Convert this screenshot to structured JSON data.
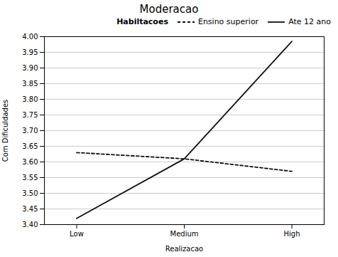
{
  "chart_data": {
    "type": "line",
    "title": "Moderacao",
    "xlabel": "Realizacao",
    "ylabel": "Com Dificuldades",
    "x": [
      0,
      1,
      2
    ],
    "xlim": [
      -0.3,
      2.3
    ],
    "xticks": [
      {
        "value": 0,
        "label": "Low"
      },
      {
        "value": 1,
        "label": "Medium"
      },
      {
        "value": 2,
        "label": "High"
      }
    ],
    "ylim": [
      3.4,
      4.0
    ],
    "yticks": [
      {
        "value": 3.4,
        "label": "3.40"
      },
      {
        "value": 3.45,
        "label": "3.45"
      },
      {
        "value": 3.5,
        "label": "3.50"
      },
      {
        "value": 3.55,
        "label": "3.55"
      },
      {
        "value": 3.6,
        "label": "3.60"
      },
      {
        "value": 3.65,
        "label": "3.65"
      },
      {
        "value": 3.7,
        "label": "3.70"
      },
      {
        "value": 3.75,
        "label": "3.75"
      },
      {
        "value": 3.8,
        "label": "3.80"
      },
      {
        "value": 3.85,
        "label": "3.85"
      },
      {
        "value": 3.9,
        "label": "3.90"
      },
      {
        "value": 3.95,
        "label": "3.95"
      },
      {
        "value": 4.0,
        "label": "4.00"
      }
    ],
    "series": [
      {
        "name": "Ensino superior",
        "color": "#111111",
        "line_style": "dashed",
        "values": [
          3.63,
          3.61,
          3.57
        ]
      },
      {
        "name": "Ate 12 ano",
        "color": "#111111",
        "line_style": "solid",
        "values": [
          3.42,
          3.61,
          3.985
        ]
      }
    ],
    "annotations": [
      {
        "text": "Habiltacoes"
      }
    ],
    "legend": "upper right",
    "grid": true
  }
}
